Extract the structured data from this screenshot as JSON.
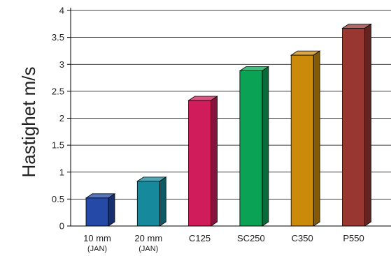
{
  "chart_data": {
    "type": "bar",
    "ylabel": "Hastighet m/s",
    "ylim": [
      0,
      4
    ],
    "yticks": [
      "0",
      "0.5",
      "1",
      "1.5",
      "2",
      "2.5",
      "3",
      "3.5",
      "4"
    ],
    "grid": true,
    "categories": [
      {
        "label": "10 mm",
        "sublabel": "(JAN)"
      },
      {
        "label": "20 mm",
        "sublabel": "(JAN)"
      },
      {
        "label": "C125",
        "sublabel": ""
      },
      {
        "label": "SC250",
        "sublabel": ""
      },
      {
        "label": "C350",
        "sublabel": ""
      },
      {
        "label": "P550",
        "sublabel": ""
      }
    ],
    "values": [
      0.52,
      0.83,
      2.33,
      2.88,
      3.17,
      3.67
    ],
    "colors": [
      "#2449a6",
      "#168a9c",
      "#d01c5a",
      "#0aa356",
      "#cc8a0a",
      "#983732"
    ]
  }
}
